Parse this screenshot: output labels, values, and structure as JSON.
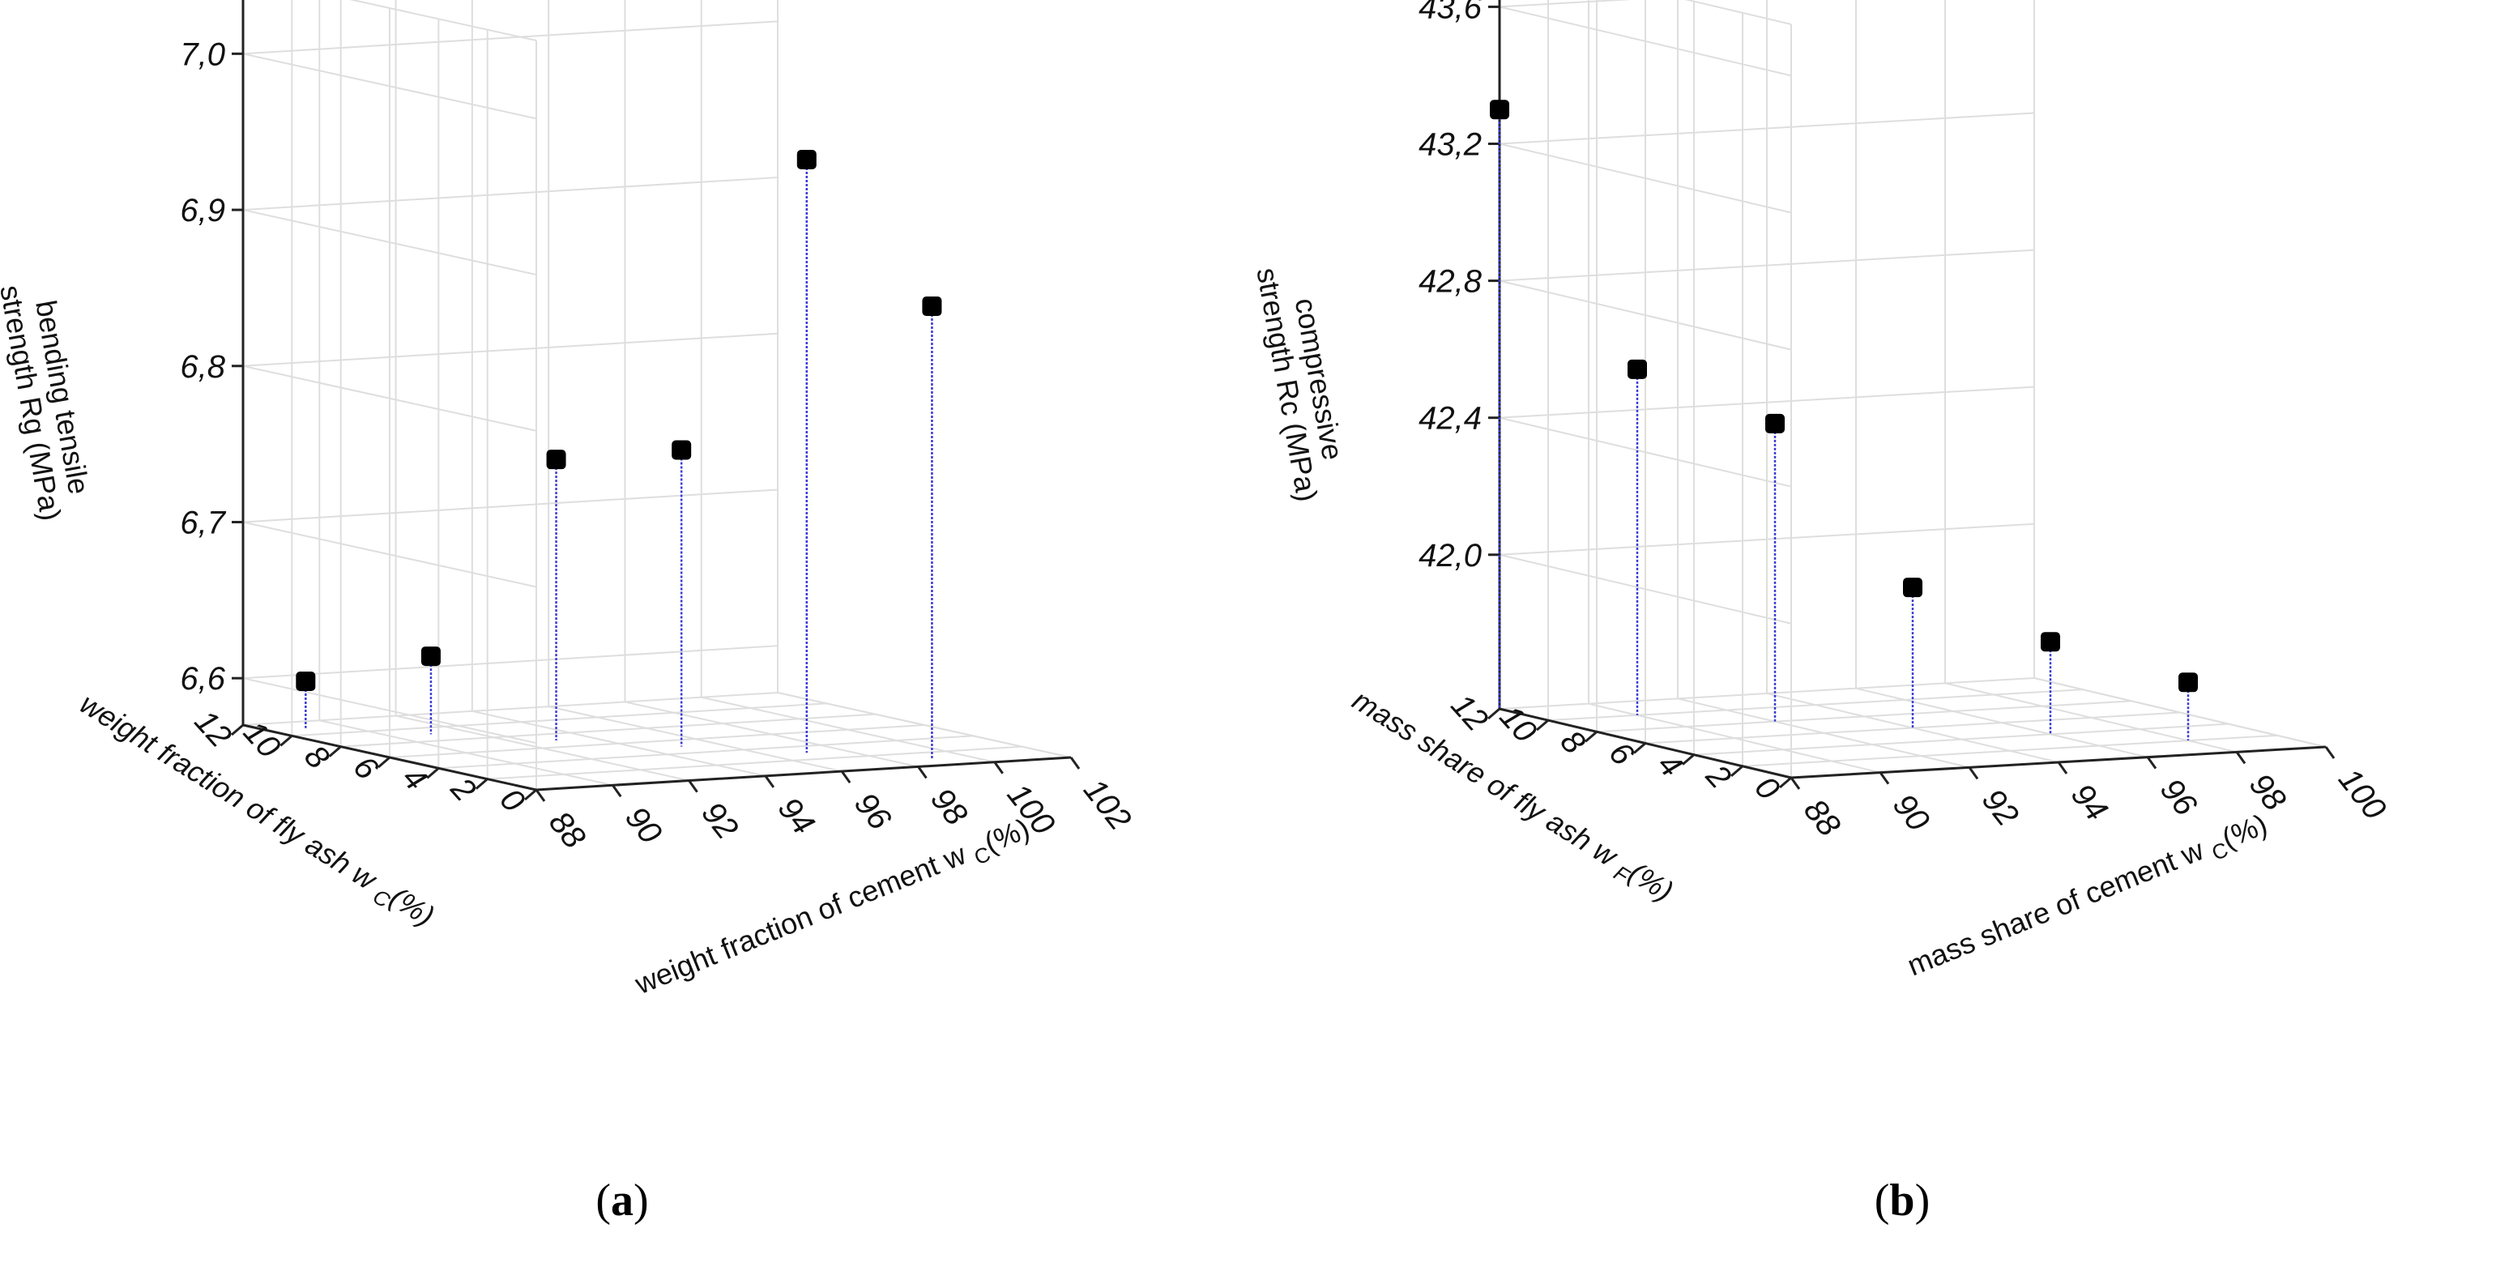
{
  "chart_data": [
    {
      "type": "scatter",
      "subtype": "3d-stem",
      "panel_label": "a",
      "caption_open": "(",
      "caption_close": ")",
      "zlabel": "bending tensile strength Rg (MPa)",
      "zlabel_line1": "bending tensile",
      "zlabel_line2": "strength Rg (MPa)",
      "xlabel": "weight fraction of cement w C(%)",
      "xlabel_main": "weight fraction of cement w",
      "xlabel_sub": "C",
      "xlabel_unit": "(%)",
      "ylabel": "weight fraction of fly ash w C (%)",
      "ylabel_main": "weight fraction of fly ash w",
      "ylabel_sub": "C",
      "ylabel_unit": "(%)",
      "xlim": [
        88,
        102
      ],
      "ylim": [
        0,
        12
      ],
      "zlim": [
        6.57,
        7.05
      ],
      "xticks": [
        "88",
        "90",
        "92",
        "94",
        "96",
        "98",
        "100",
        "102"
      ],
      "xtick_values": [
        88,
        90,
        92,
        94,
        96,
        98,
        100,
        102
      ],
      "yticks": [
        "0",
        "2",
        "4",
        "6",
        "8",
        "10",
        "12"
      ],
      "ytick_values": [
        0,
        2,
        4,
        6,
        8,
        10,
        12
      ],
      "zticks": [
        "6,6",
        "6,7",
        "6,8",
        "6,9",
        "7,0"
      ],
      "ztick_values": [
        6.6,
        6.7,
        6.8,
        6.9,
        7.0
      ],
      "points": [
        {
          "cement": 89,
          "fly_ash": 11,
          "value": 6.6
        },
        {
          "cement": 91,
          "fly_ash": 9,
          "value": 6.62
        },
        {
          "cement": 93,
          "fly_ash": 7,
          "value": 6.75
        },
        {
          "cement": 95,
          "fly_ash": 5,
          "value": 6.76
        },
        {
          "cement": 97,
          "fly_ash": 3,
          "value": 6.95
        },
        {
          "cement": 99,
          "fly_ash": 1,
          "value": 6.86
        }
      ]
    },
    {
      "type": "scatter",
      "subtype": "3d-stem",
      "panel_label": "b",
      "caption_open": "(",
      "caption_close": ")",
      "zlabel": "compressive strength Rc (MPa)",
      "zlabel_line1": "compressive",
      "zlabel_line2": "strength Rc (MPa)",
      "xlabel": "mass share of cement w C(%)",
      "xlabel_main": "mass share of cement w",
      "xlabel_sub": "C",
      "xlabel_unit": "(%)",
      "ylabel": "mass share of fly ash w F(%)",
      "ylabel_main": "mass share of fly ash w",
      "ylabel_sub": "F",
      "ylabel_unit": "(%)",
      "xlim": [
        88,
        100
      ],
      "ylim": [
        0,
        12
      ],
      "zlim": [
        41.55,
        43.75
      ],
      "xticks": [
        "88",
        "90",
        "92",
        "94",
        "96",
        "98",
        "100"
      ],
      "xtick_values": [
        88,
        90,
        92,
        94,
        96,
        98,
        100
      ],
      "yticks": [
        "0",
        "2",
        "4",
        "6",
        "8",
        "10",
        "12"
      ],
      "ytick_values": [
        0,
        2,
        4,
        6,
        8,
        10,
        12
      ],
      "zticks": [
        "42,0",
        "42,4",
        "42,8",
        "43,2",
        "43,6"
      ],
      "ztick_values": [
        42.0,
        42.4,
        42.8,
        43.2,
        43.6
      ],
      "points": [
        {
          "cement": 88,
          "fly_ash": 12,
          "value": 43.3
        },
        {
          "cement": 90,
          "fly_ash": 10,
          "value": 42.56
        },
        {
          "cement": 92,
          "fly_ash": 8,
          "value": 42.42
        },
        {
          "cement": 94,
          "fly_ash": 6,
          "value": 41.96
        },
        {
          "cement": 96,
          "fly_ash": 4,
          "value": 41.82
        },
        {
          "cement": 98,
          "fly_ash": 2,
          "value": 41.72
        }
      ]
    }
  ]
}
